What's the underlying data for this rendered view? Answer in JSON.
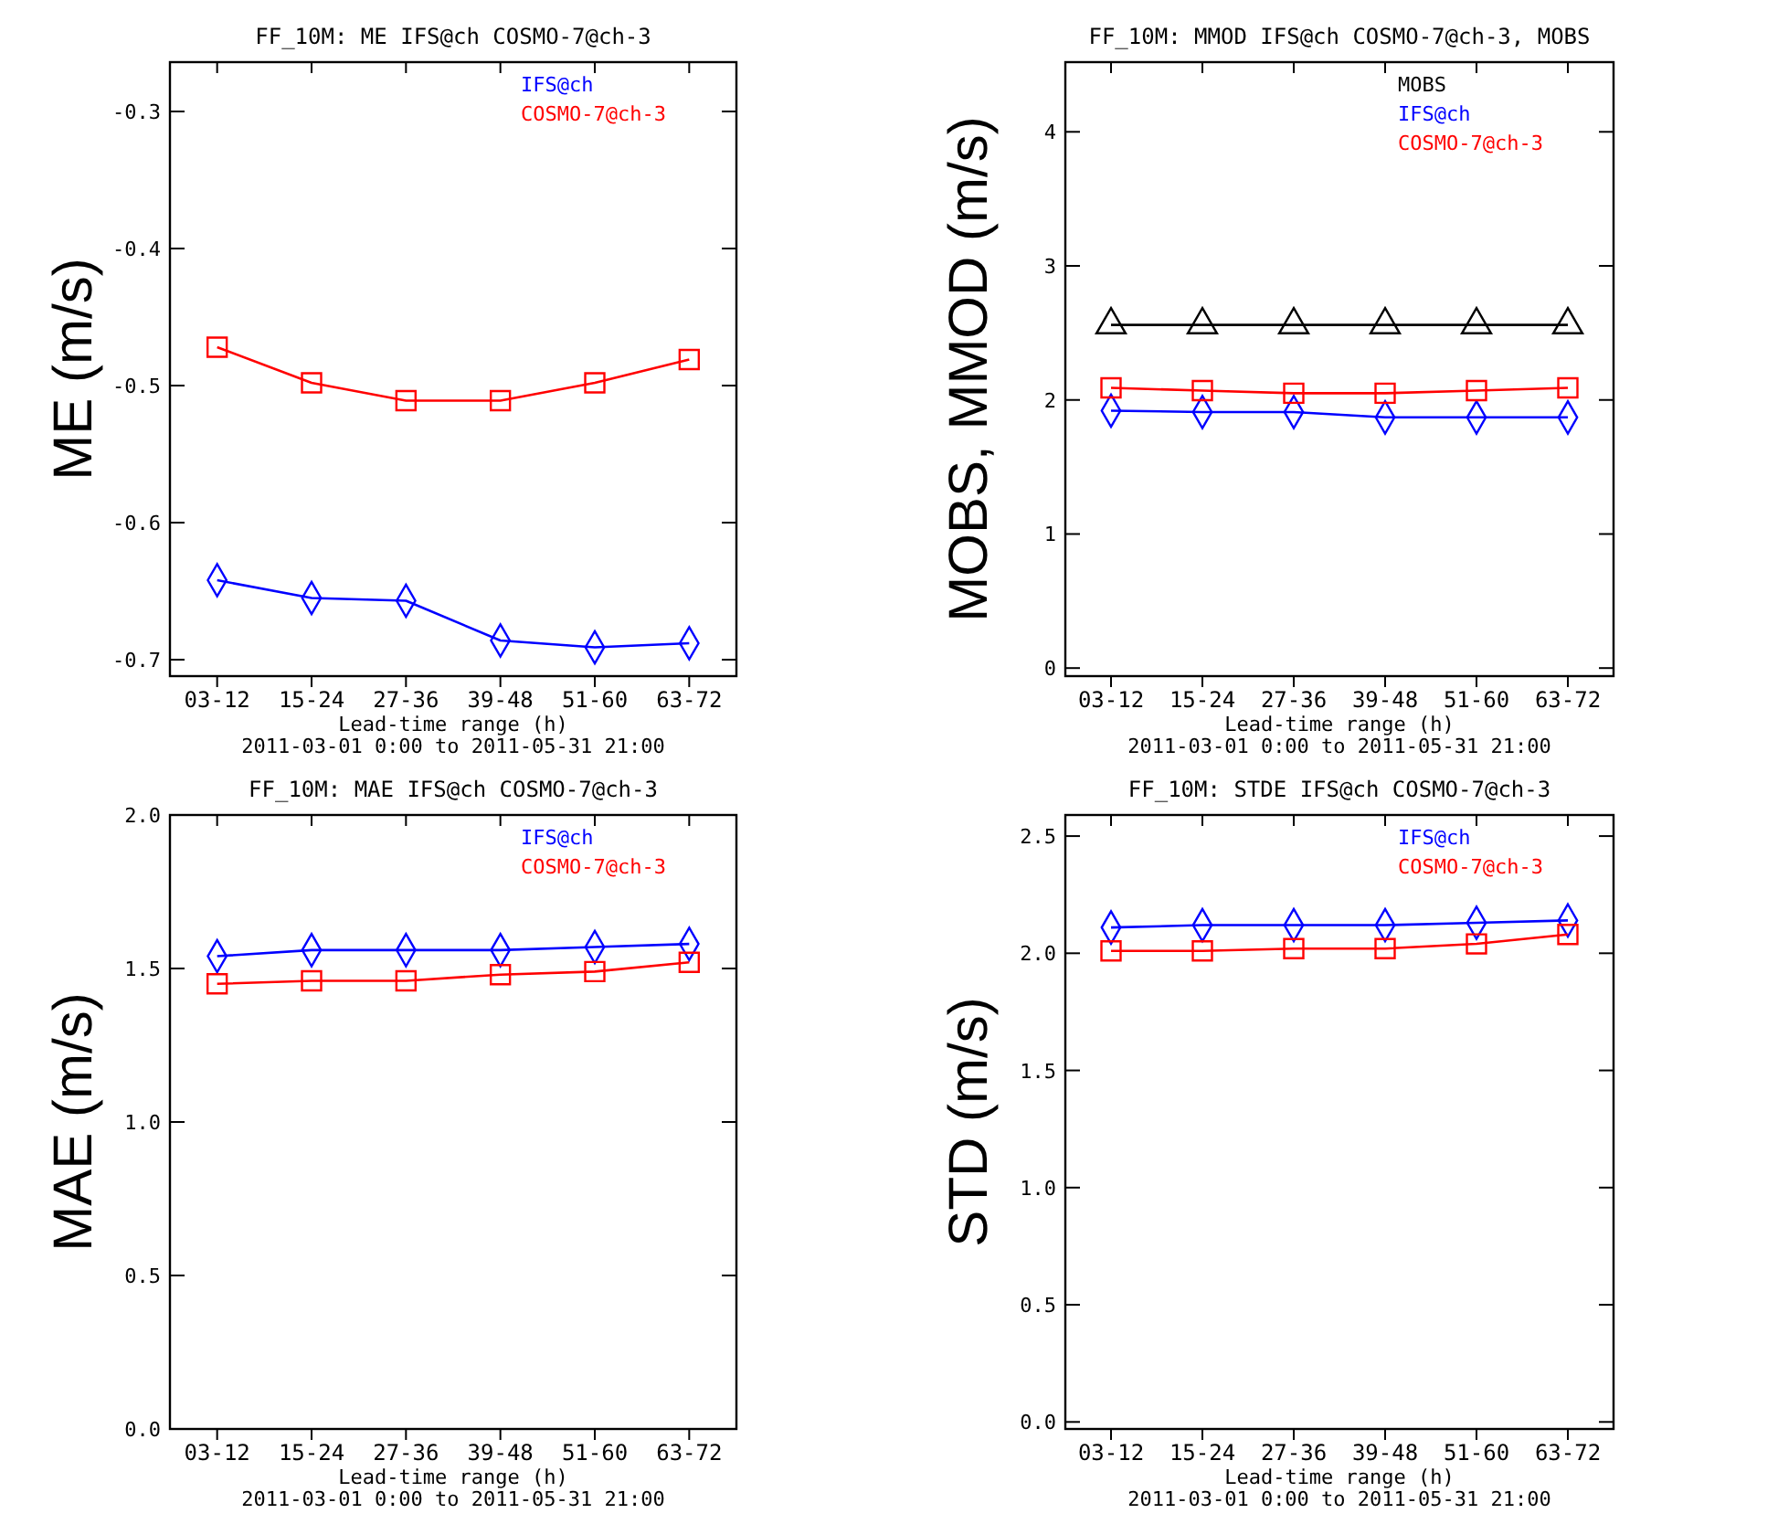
{
  "chart_data": [
    {
      "type": "line",
      "title": "FF_10M: ME IFS@ch COSMO-7@ch-3",
      "xlabel": "Lead-time range (h)",
      "ylabel": "ME (m/s)",
      "annotations": [
        "2011-03-01  0:00 to 2011-05-31 21:00"
      ],
      "categories": [
        "03-12",
        "15-24",
        "27-36",
        "39-48",
        "51-60",
        "63-72"
      ],
      "ylim": [
        -0.712,
        -0.264
      ],
      "yticks": [
        -0.7,
        -0.6,
        -0.5,
        -0.4,
        -0.3
      ],
      "legend": "top right",
      "grid": false,
      "line_style": "solid",
      "series": [
        {
          "name": "IFS@ch",
          "color": "#0000ff",
          "marker": "diamond",
          "values": [
            -0.642,
            -0.655,
            -0.657,
            -0.686,
            -0.691,
            -0.688
          ]
        },
        {
          "name": "COSMO-7@ch-3",
          "color": "#ff0000",
          "marker": "square",
          "values": [
            -0.472,
            -0.498,
            -0.511,
            -0.511,
            -0.498,
            -0.481
          ]
        }
      ]
    },
    {
      "type": "line",
      "title": "FF_10M: MMOD IFS@ch COSMO-7@ch-3, MOBS",
      "xlabel": "Lead-time range (h)",
      "ylabel": "MOBS, MMOD (m/s)",
      "annotations": [
        "2011-03-01  0:00 to 2011-05-31 21:00"
      ],
      "categories": [
        "03-12",
        "15-24",
        "27-36",
        "39-48",
        "51-60",
        "63-72"
      ],
      "ylim": [
        -0.06,
        4.52
      ],
      "yticks": [
        0,
        1,
        2,
        3,
        4
      ],
      "legend": "top right",
      "grid": false,
      "line_style": "solid",
      "series": [
        {
          "name": "MOBS",
          "color": "#000000",
          "marker": "triangle",
          "values": [
            2.56,
            2.56,
            2.56,
            2.56,
            2.56,
            2.56
          ]
        },
        {
          "name": "IFS@ch",
          "color": "#0000ff",
          "marker": "diamond",
          "values": [
            1.92,
            1.91,
            1.91,
            1.87,
            1.87,
            1.87
          ]
        },
        {
          "name": "COSMO-7@ch-3",
          "color": "#ff0000",
          "marker": "square",
          "values": [
            2.09,
            2.07,
            2.05,
            2.05,
            2.07,
            2.09
          ]
        }
      ]
    },
    {
      "type": "line",
      "title": "FF_10M: MAE IFS@ch COSMO-7@ch-3",
      "xlabel": "Lead-time range (h)",
      "ylabel": "MAE (m/s)",
      "annotations": [
        "2011-03-01  0:00 to 2011-05-31 21:00"
      ],
      "categories": [
        "03-12",
        "15-24",
        "27-36",
        "39-48",
        "51-60",
        "63-72"
      ],
      "ylim": [
        0,
        2
      ],
      "yticks": [
        {
          "value": 0,
          "label": "0.0"
        },
        0.5,
        {
          "value": 1,
          "label": "1.0"
        },
        1.5,
        {
          "value": 2,
          "label": "2.0"
        }
      ],
      "legend": "top right",
      "grid": false,
      "line_style": "solid",
      "series": [
        {
          "name": "IFS@ch",
          "color": "#0000ff",
          "marker": "diamond",
          "values": [
            1.54,
            1.56,
            1.56,
            1.56,
            1.57,
            1.58
          ]
        },
        {
          "name": "COSMO-7@ch-3",
          "color": "#ff0000",
          "marker": "square",
          "values": [
            1.45,
            1.46,
            1.46,
            1.48,
            1.49,
            1.52
          ]
        }
      ]
    },
    {
      "type": "line",
      "title": "FF_10M: STDE IFS@ch COSMO-7@ch-3",
      "xlabel": "Lead-time range (h)",
      "ylabel": "STD (m/s)",
      "annotations": [
        "2011-03-01  0:00 to 2011-05-31 21:00"
      ],
      "categories": [
        "03-12",
        "15-24",
        "27-36",
        "39-48",
        "51-60",
        "63-72"
      ],
      "ylim": [
        -0.03,
        2.59
      ],
      "yticks": [
        {
          "value": 0,
          "label": "0.0"
        },
        0.5,
        {
          "value": 1,
          "label": "1.0"
        },
        1.5,
        {
          "value": 2,
          "label": "2.0"
        },
        2.5
      ],
      "legend": "top right",
      "grid": false,
      "line_style": "solid",
      "series": [
        {
          "name": "IFS@ch",
          "color": "#0000ff",
          "marker": "diamond",
          "values": [
            2.11,
            2.12,
            2.12,
            2.12,
            2.13,
            2.14
          ]
        },
        {
          "name": "COSMO-7@ch-3",
          "color": "#ff0000",
          "marker": "square",
          "values": [
            2.01,
            2.01,
            2.02,
            2.02,
            2.04,
            2.08
          ]
        }
      ]
    }
  ]
}
